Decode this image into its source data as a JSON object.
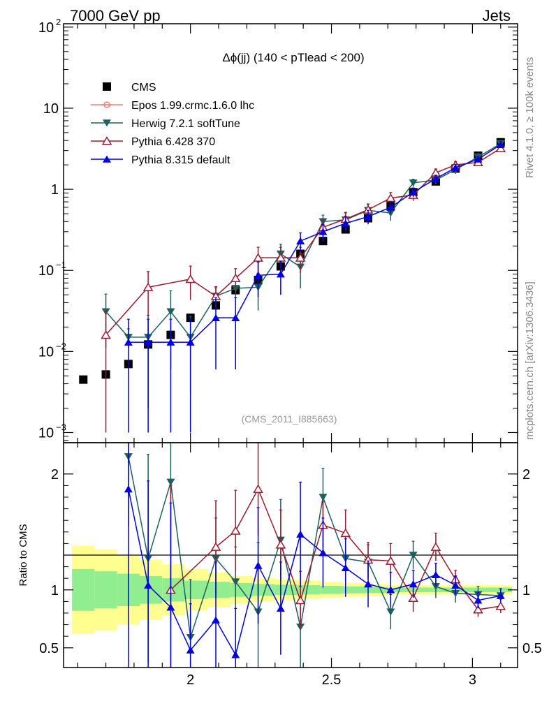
{
  "header": {
    "left": "7000 GeV pp",
    "right": "Jets"
  },
  "side_labels": {
    "rivet": "Rivet 4.1.0, ≥ 100k events",
    "mcplots": "mcplots.cern.ch [arXiv:1306.3436]"
  },
  "colors": {
    "cms": "#000000",
    "epos": "#f08080",
    "herwig": "#1f5f5f",
    "pythia6": "#9b1b30",
    "pythia8": "#0000e0",
    "band_inner": "#90ee90",
    "band_outer": "#ffff90"
  },
  "chart_data": [
    {
      "type": "line",
      "title": "Δϕ(jj) (140 < pTlead <  200)",
      "watermark": "(CMS_2011_I885663)",
      "yscale": "log",
      "xlim": [
        1.55,
        3.16
      ],
      "ylim": [
        0.00075,
        110
      ],
      "yticks": [
        {
          "v": 100,
          "label": "10",
          "sup": "2"
        },
        {
          "v": 10,
          "label": "10",
          "sup": ""
        },
        {
          "v": 1,
          "label": "1",
          "sup": ""
        },
        {
          "v": 0.1,
          "label": "10",
          "sup": "−1"
        },
        {
          "v": 0.01,
          "label": "10",
          "sup": "−2"
        },
        {
          "v": 0.001,
          "label": "10",
          "sup": "−3"
        }
      ],
      "legend_position": "top-left",
      "series": [
        {
          "name": "CMS",
          "marker": "square",
          "color": "#000000",
          "x": [
            1.62,
            1.7,
            1.78,
            1.85,
            1.93,
            2.0,
            2.09,
            2.16,
            2.24,
            2.32,
            2.39,
            2.47,
            2.55,
            2.63,
            2.71,
            2.79,
            2.87,
            2.94,
            3.02,
            3.1
          ],
          "y": [
            0.0045,
            0.0052,
            0.007,
            0.0122,
            0.016,
            0.026,
            0.037,
            0.057,
            0.076,
            0.112,
            0.16,
            0.23,
            0.32,
            0.44,
            0.62,
            0.92,
            1.25,
            1.8,
            2.6,
            3.8
          ]
        },
        {
          "name": "Epos 1.99.crmc.1.6.0 lhc",
          "marker": "cross",
          "color": "#f08080",
          "x": [],
          "y": []
        },
        {
          "name": "Herwig 7.2.1 softTune",
          "marker": "triangle-down",
          "color": "#1f5f5f",
          "x": [
            1.7,
            1.78,
            1.85,
            1.93,
            2.0,
            2.09,
            2.16,
            2.24,
            2.32,
            2.39,
            2.47,
            2.55,
            2.63,
            2.71,
            2.79,
            2.87,
            2.94,
            3.02,
            3.1
          ],
          "y": [
            0.031,
            0.015,
            0.015,
            0.031,
            0.015,
            0.048,
            0.06,
            0.062,
            0.16,
            0.11,
            0.4,
            0.42,
            0.55,
            0.51,
            1.2,
            1.3,
            1.75,
            2.5,
            3.65
          ],
          "err": [
            0.02,
            0.004,
            0.013,
            0.025,
            0.012,
            0.013,
            0.02,
            0.03,
            0.05,
            0.05,
            0.08,
            0.09,
            0.1,
            0.1,
            0.13,
            0.15,
            0.2,
            0.25,
            0.35
          ]
        },
        {
          "name": "Pythia 6.428 370",
          "marker": "triangle-up-open",
          "color": "#9b1b30",
          "x": [
            1.7,
            1.85,
            2.0,
            2.09,
            2.16,
            2.24,
            2.32,
            2.39,
            2.47,
            2.55,
            2.63,
            2.71,
            2.79,
            2.87,
            2.94,
            3.02,
            3.1
          ],
          "y": [
            0.016,
            0.062,
            0.078,
            0.048,
            0.08,
            0.143,
            0.143,
            0.143,
            0.34,
            0.43,
            0.56,
            0.78,
            0.85,
            1.6,
            2.0,
            2.15,
            3.2
          ],
          "err": [
            0.015,
            0.035,
            0.035,
            0.015,
            0.025,
            0.05,
            0.05,
            0.05,
            0.08,
            0.09,
            0.1,
            0.13,
            0.13,
            0.18,
            0.2,
            0.2,
            0.3
          ]
        },
        {
          "name": "Pythia 8.315 default",
          "marker": "triangle-up",
          "color": "#0000e0",
          "x": [
            1.78,
            1.85,
            1.93,
            2.0,
            2.09,
            2.16,
            2.24,
            2.32,
            2.39,
            2.47,
            2.55,
            2.63,
            2.71,
            2.79,
            2.87,
            2.94,
            3.02,
            3.1
          ],
          "y": [
            0.013,
            0.013,
            0.013,
            0.013,
            0.026,
            0.026,
            0.087,
            0.09,
            0.23,
            0.3,
            0.38,
            0.46,
            0.6,
            0.92,
            1.35,
            1.85,
            2.35,
            3.55
          ],
          "err": [
            0.012,
            0.012,
            0.012,
            0.012,
            0.02,
            0.02,
            0.04,
            0.04,
            0.06,
            0.07,
            0.08,
            0.09,
            0.1,
            0.12,
            0.14,
            0.18,
            0.2,
            0.3
          ]
        }
      ]
    },
    {
      "type": "line",
      "ylabel": "Ratio to CMS",
      "xlim": [
        1.55,
        3.16
      ],
      "ylim": [
        0.33,
        2.27
      ],
      "xticks": [
        {
          "v": 2,
          "label": "2"
        },
        {
          "v": 2.5,
          "label": "2.5"
        },
        {
          "v": 3,
          "label": "3"
        }
      ],
      "yticks": [
        {
          "v": 2,
          "label": "2"
        },
        {
          "v": 1,
          "label": "1"
        },
        {
          "v": 0.5,
          "label": "0.5"
        }
      ],
      "band": {
        "edges": [
          1.58,
          1.66,
          1.74,
          1.82,
          1.9,
          1.98,
          2.06,
          2.14,
          2.22,
          2.3,
          2.38,
          2.46,
          2.54,
          2.62,
          2.7,
          2.78,
          2.86,
          2.94,
          3.02,
          3.14
        ],
        "inner": [
          0.18,
          0.16,
          0.14,
          0.12,
          0.1,
          0.08,
          0.07,
          0.06,
          0.05,
          0.045,
          0.04,
          0.035,
          0.03,
          0.025,
          0.02,
          0.02,
          0.02,
          0.02,
          0.02
        ],
        "outer": [
          0.38,
          0.35,
          0.3,
          0.26,
          0.22,
          0.18,
          0.15,
          0.12,
          0.1,
          0.09,
          0.08,
          0.07,
          0.06,
          0.05,
          0.04,
          0.04,
          0.04,
          0.04,
          0.04
        ]
      },
      "series": [
        {
          "name": "Herwig 7.2.1 softTune",
          "marker": "triangle-down",
          "color": "#1f5f5f",
          "x": [
            1.78,
            1.85,
            1.93,
            2.0,
            2.09,
            2.16,
            2.24,
            2.32,
            2.39,
            2.47,
            2.55,
            2.63,
            2.71,
            2.79,
            2.87,
            2.94,
            3.02,
            3.1
          ],
          "y": [
            2.15,
            1.27,
            1.93,
            0.59,
            1.27,
            1.07,
            0.81,
            1.43,
            0.68,
            1.8,
            1.27,
            1.24,
            0.81,
            1.3,
            1.03,
            0.97,
            0.96,
            0.95
          ],
          "err": [
            0.6,
            0.9,
            1.2,
            0.5,
            0.35,
            0.3,
            0.6,
            0.35,
            0.35,
            0.25,
            0.2,
            0.15,
            0.15,
            0.12,
            0.1,
            0.08,
            0.07,
            0.06
          ]
        },
        {
          "name": "Pythia 6.428 370",
          "marker": "triangle-up-open",
          "color": "#9b1b30",
          "x": [
            1.93,
            2.09,
            2.16,
            2.24,
            2.32,
            2.39,
            2.47,
            2.55,
            2.63,
            2.71,
            2.79,
            2.87,
            2.94,
            3.02,
            3.1
          ],
          "y": [
            1.0,
            1.37,
            1.51,
            1.87,
            1.39,
            0.91,
            1.56,
            1.49,
            1.26,
            1.25,
            0.93,
            1.37,
            1.09,
            0.83,
            0.86
          ],
          "err": [
            0.9,
            0.4,
            0.35,
            0.4,
            0.3,
            0.25,
            0.2,
            0.2,
            0.15,
            0.15,
            0.12,
            0.12,
            0.08,
            0.06,
            0.06
          ]
        },
        {
          "name": "Pythia 8.315 default",
          "marker": "triangle-up",
          "color": "#0000e0",
          "x": [
            1.78,
            1.85,
            1.93,
            2.0,
            2.09,
            2.16,
            2.24,
            2.32,
            2.39,
            2.47,
            2.55,
            2.63,
            2.71,
            2.79,
            2.87,
            2.94,
            3.02,
            3.1
          ],
          "y": [
            1.87,
            1.04,
            0.85,
            0.48,
            0.74,
            0.44,
            1.21,
            0.84,
            1.48,
            1.32,
            1.19,
            1.05,
            1.0,
            1.05,
            1.13,
            1.04,
            0.91,
            0.95
          ],
          "err": [
            1.6,
            0.9,
            0.9,
            0.4,
            0.5,
            0.4,
            0.5,
            0.4,
            0.45,
            0.3,
            0.25,
            0.2,
            0.15,
            0.12,
            0.1,
            0.08,
            0.07,
            0.06
          ]
        }
      ]
    }
  ]
}
